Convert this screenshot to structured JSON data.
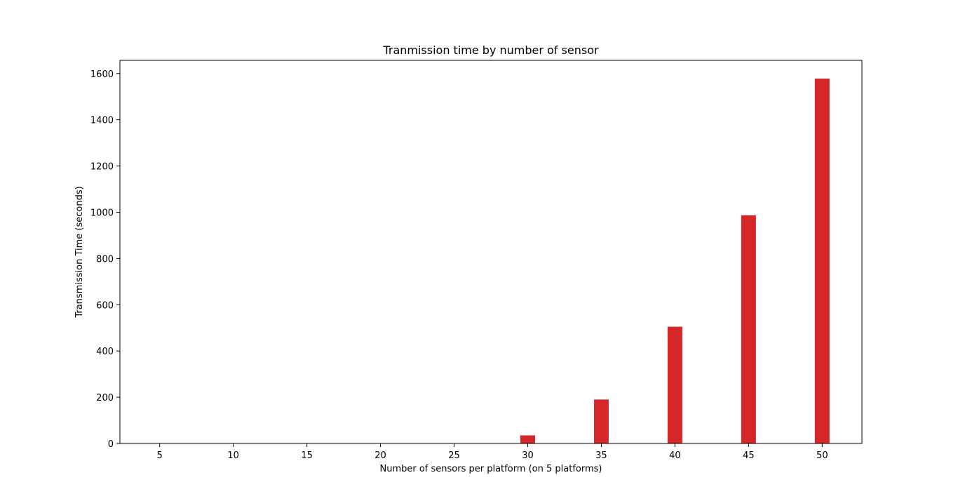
{
  "chart_data": {
    "type": "bar",
    "title": "Tranmission time by number of sensor",
    "xlabel": "Number of sensors per platform (on 5 platforms)",
    "ylabel": "Transmission Time (seconds)",
    "x": [
      5,
      10,
      15,
      20,
      25,
      30,
      35,
      40,
      45,
      50
    ],
    "values": [
      0,
      0,
      0,
      0,
      0,
      35,
      190,
      505,
      987,
      1578
    ],
    "bar_width": 1,
    "xlim": [
      2.3,
      52.7
    ],
    "ylim": [
      0,
      1657
    ],
    "xticks": [
      5,
      10,
      15,
      20,
      25,
      30,
      35,
      40,
      45,
      50
    ],
    "yticks": [
      0,
      200,
      400,
      600,
      800,
      1000,
      1200,
      1400,
      1600
    ],
    "bar_color": "#d62728",
    "grid": false,
    "legend": "none"
  }
}
